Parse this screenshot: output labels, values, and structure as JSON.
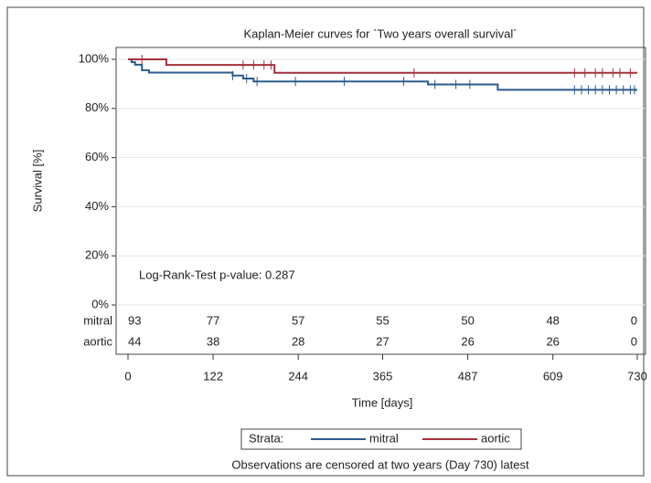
{
  "chart_data": {
    "type": "line",
    "title": "Kaplan-Meier curves for `Two years overall survival´",
    "xlabel": "Time [days]",
    "ylabel": "Survival [%]",
    "xlim": [
      0,
      730
    ],
    "xticks": [
      0,
      122,
      244,
      365,
      487,
      609,
      730
    ],
    "ylim": [
      0,
      100
    ],
    "yticks": [
      {
        "value": 0,
        "label": "0%"
      },
      {
        "value": 20,
        "label": "20%"
      },
      {
        "value": 40,
        "label": "40%"
      },
      {
        "value": 60,
        "label": "60%"
      },
      {
        "value": 80,
        "label": "80%"
      },
      {
        "value": 100,
        "label": "100%"
      }
    ],
    "grid": true,
    "step": true,
    "annotation": "Log-Rank-Test p-value: 0.287",
    "legend_title": "Strata:",
    "legend_position": "bottom",
    "footnote": "Observations are censored at two years (Day 730) latest",
    "series": [
      {
        "name": "mitral",
        "color": "#2b5b8c",
        "x": [
          0,
          5,
          10,
          20,
          30,
          150,
          165,
          180,
          430,
          530
        ],
        "values": [
          100,
          98.9,
          97.8,
          95.6,
          94.6,
          93.4,
          92.2,
          91.0,
          89.8,
          87.6
        ],
        "censor_x": [
          150,
          170,
          185,
          240,
          310,
          395,
          440,
          470,
          490,
          640,
          650,
          660,
          670,
          680,
          690,
          700,
          710,
          720,
          726
        ],
        "censor_y": [
          93.4,
          92.2,
          91.0,
          91.0,
          91.0,
          91.0,
          89.8,
          89.8,
          89.8,
          87.6,
          87.6,
          87.6,
          87.6,
          87.6,
          87.6,
          87.6,
          87.6,
          87.6,
          87.6
        ],
        "at_risk": [
          93,
          77,
          57,
          55,
          50,
          48,
          0
        ]
      },
      {
        "name": "aortic",
        "color": "#a3303c",
        "x": [
          0,
          55,
          210
        ],
        "values": [
          100,
          97.7,
          94.5
        ],
        "censor_x": [
          20,
          165,
          180,
          195,
          205,
          410,
          640,
          655,
          670,
          680,
          695,
          705,
          720
        ],
        "censor_y": [
          100,
          97.7,
          97.7,
          97.7,
          97.7,
          94.5,
          94.5,
          94.5,
          94.5,
          94.5,
          94.5,
          94.5,
          94.5
        ],
        "at_risk": [
          44,
          38,
          28,
          27,
          26,
          26,
          0
        ]
      }
    ]
  }
}
